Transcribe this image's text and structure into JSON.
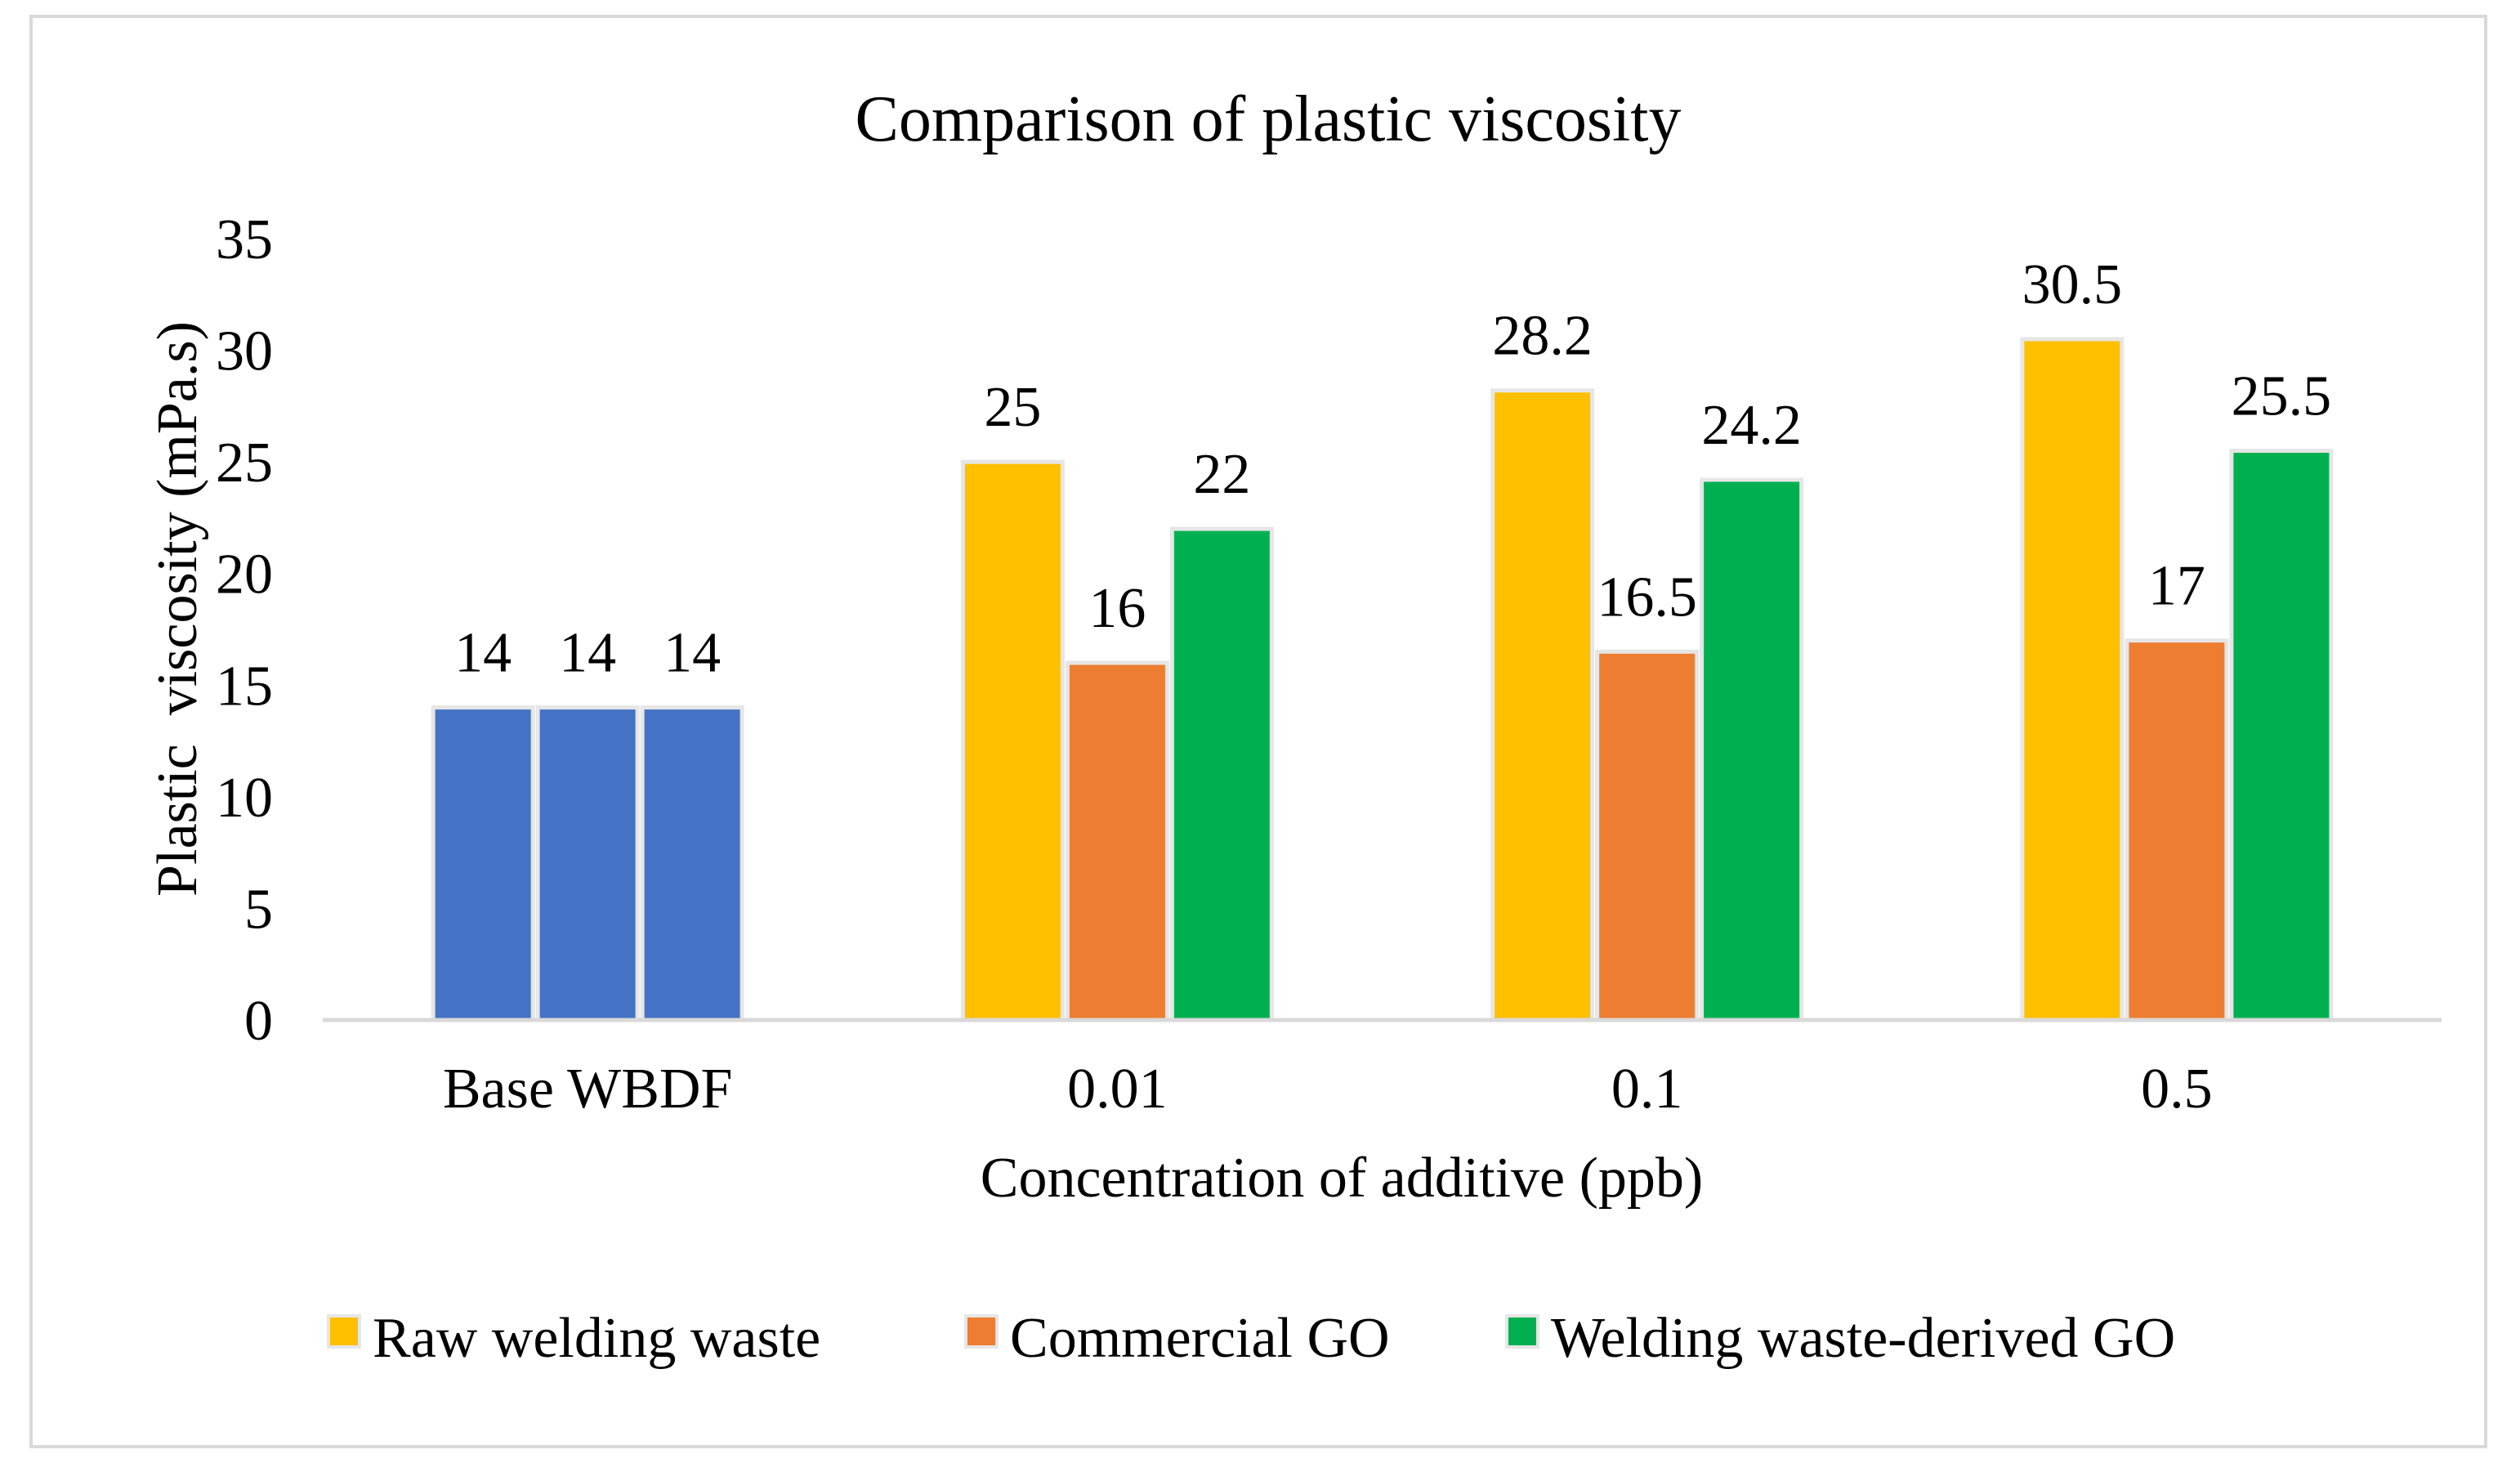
{
  "chart_data": {
    "type": "bar",
    "title": "Comparison of plastic viscosity",
    "xlabel": "Concentration of additive (ppb)",
    "ylabel": "Plastic  viscosity (mPa.s)",
    "ylim": [
      0,
      35
    ],
    "yticks": [
      0,
      5,
      10,
      15,
      20,
      25,
      30,
      35
    ],
    "grid": false,
    "legend_position": "bottom",
    "categories": [
      "Base WBDF",
      "0.01",
      "0.1",
      "0.5"
    ],
    "series": [
      {
        "name": "Raw welding waste",
        "color": "#FFC000",
        "values": [
          14,
          25,
          28.2,
          30.5
        ],
        "labels": [
          "14",
          "25",
          "28.2",
          "30.5"
        ]
      },
      {
        "name": "Commercial GO",
        "color": "#ED7D31",
        "values": [
          14,
          16,
          16.5,
          17
        ],
        "labels": [
          "14",
          "16",
          "16.5",
          "17"
        ]
      },
      {
        "name": "Welding waste-derived GO",
        "color": "#00B050",
        "values": [
          14,
          22,
          24.2,
          25.5
        ],
        "labels": [
          "14",
          "22",
          "24.2",
          "25.5"
        ]
      }
    ],
    "base_color": "#4472C4",
    "axis_color": "#d9d9d9",
    "bar_edge_color": "#e6e6e6"
  }
}
